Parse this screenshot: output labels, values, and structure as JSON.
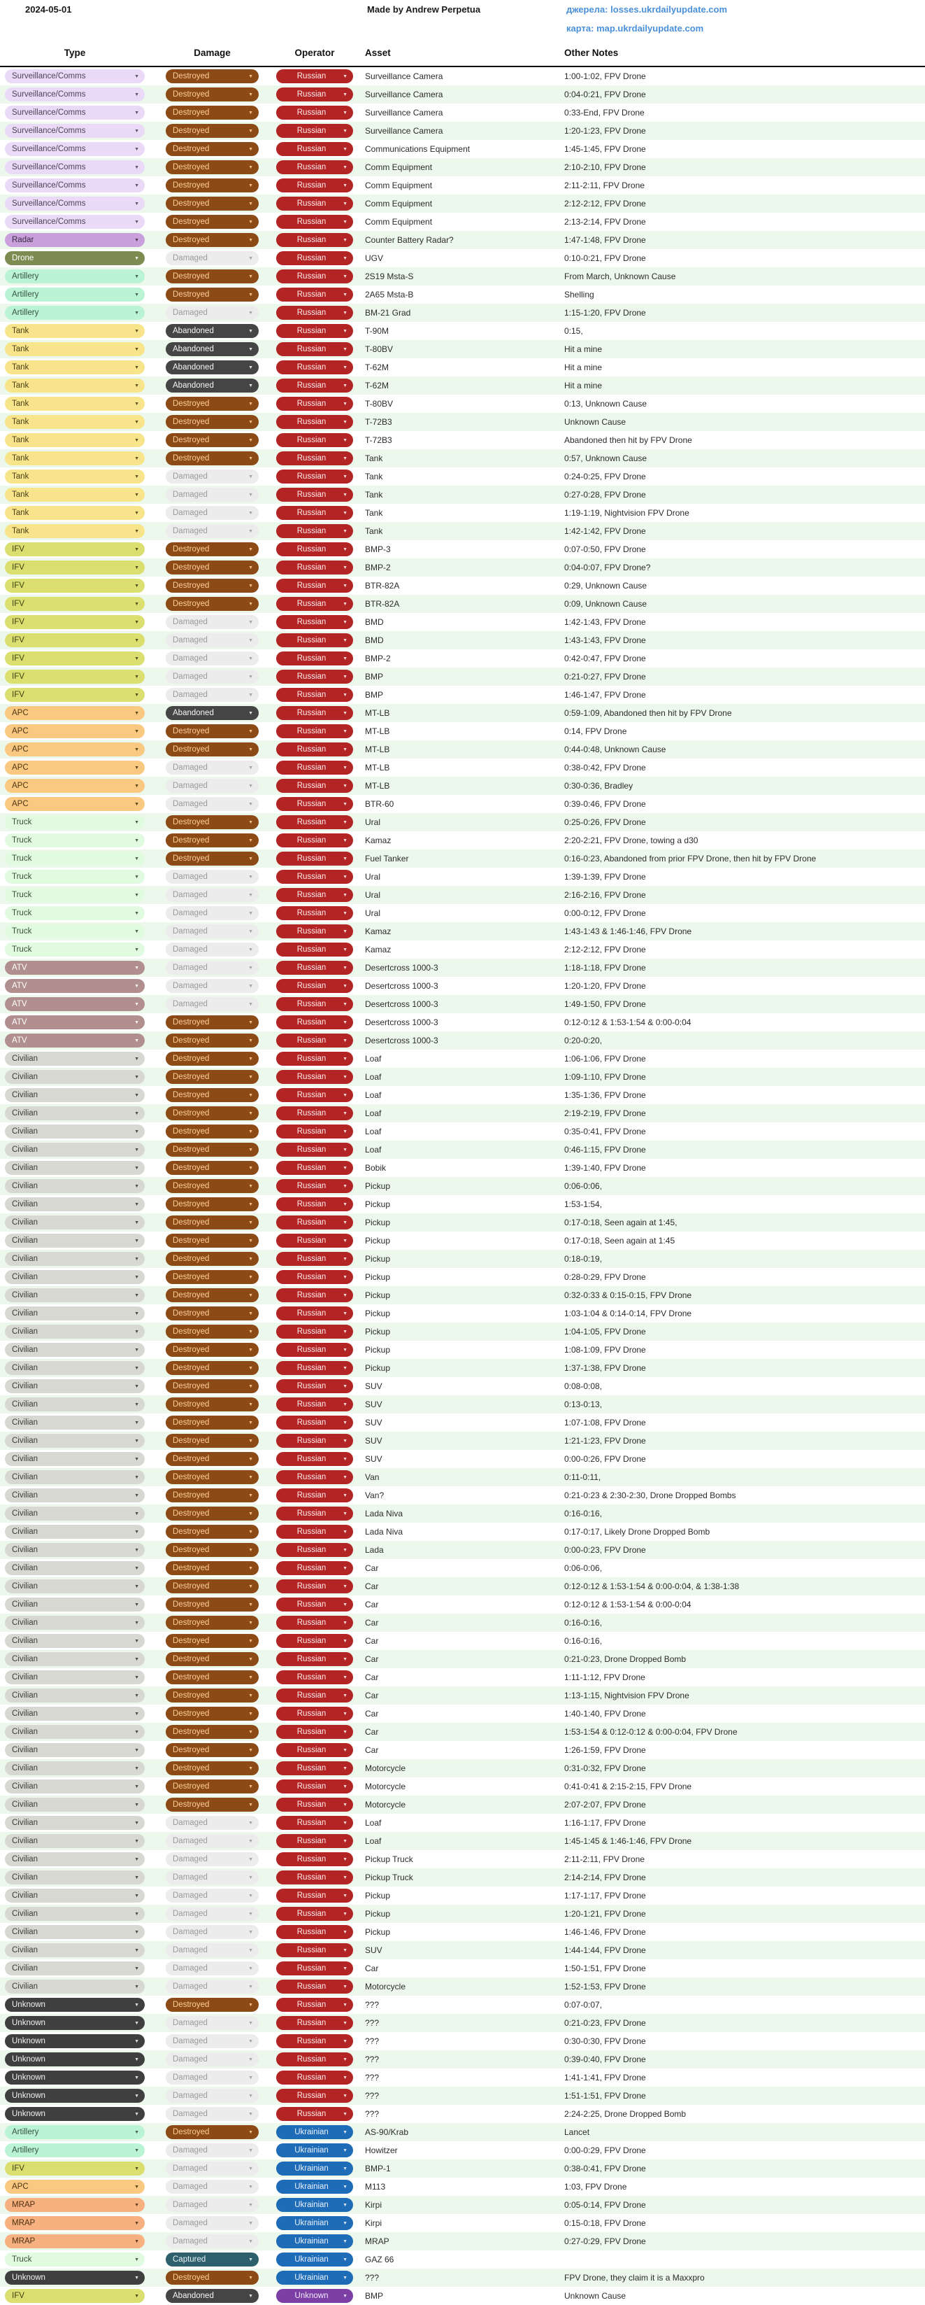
{
  "header": {
    "date": "2024-05-01",
    "credit": "Made by Andrew Perpetua",
    "sources_label": "джерела:",
    "sources_link": "losses.ukrdailyupdate.com",
    "map_label": "карта:",
    "map_link": "map.ukrdailyupdate.com"
  },
  "columns": {
    "type": "Type",
    "damage": "Damage",
    "operator": "Operator",
    "asset": "Asset",
    "notes": "Other Notes"
  },
  "styles": {
    "stripe_even": "#ffffff",
    "stripe_odd": "#edf8ed",
    "link_color": "#4a90d9",
    "type_colors": {
      "Surveillance/Comms": {
        "bg": "#ead9f7",
        "fg": "#4d4455"
      },
      "Radar": {
        "bg": "#c9a0dc",
        "fg": "#3a2a45"
      },
      "Drone": {
        "bg": "#7d8b51",
        "fg": "#ffffff"
      },
      "Artillery": {
        "bg": "#baf4d4",
        "fg": "#37523f"
      },
      "Tank": {
        "bg": "#f7e48b",
        "fg": "#4d4117"
      },
      "IFV": {
        "bg": "#dbdf70",
        "fg": "#3e4014"
      },
      "APC": {
        "bg": "#f9c981",
        "fg": "#4d3512"
      },
      "Truck": {
        "bg": "#e0fbe0",
        "fg": "#375237"
      },
      "ATV": {
        "bg": "#b28f8f",
        "fg": "#ffffff"
      },
      "Civilian": {
        "bg": "#d8d8d2",
        "fg": "#3c3c36"
      },
      "Unknown": {
        "bg": "#3f3f3f",
        "fg": "#f2f2f2"
      },
      "MRAP": {
        "bg": "#f7b07f",
        "fg": "#4d2f12"
      }
    },
    "damage_colors": {
      "Destroyed": {
        "bg": "#8b4a16",
        "fg": "#ffcf9e"
      },
      "Damaged": {
        "bg": "#ececec",
        "fg": "#9a9a9a"
      },
      "Abandoned": {
        "bg": "#454545",
        "fg": "#f5f5f5"
      },
      "Captured": {
        "bg": "#2d5f6d",
        "fg": "#eaf4f8"
      }
    },
    "operator_colors": {
      "Russian": {
        "bg": "#b32424",
        "fg": "#ffecec"
      },
      "Ukrainian": {
        "bg": "#1e6cb8",
        "fg": "#eaf2fc"
      },
      "Unknown": {
        "bg": "#7b3fa6",
        "fg": "#f3eafc"
      }
    }
  },
  "chart_data": {
    "type": "table",
    "columns": [
      "Type",
      "Damage",
      "Operator",
      "Asset",
      "Other Notes"
    ],
    "rows": [
      [
        "Surveillance/Comms",
        "Destroyed",
        "Russian",
        "Surveillance Camera",
        "1:00-1:02, FPV Drone"
      ],
      [
        "Surveillance/Comms",
        "Destroyed",
        "Russian",
        "Surveillance Camera",
        "0:04-0:21, FPV Drone"
      ],
      [
        "Surveillance/Comms",
        "Destroyed",
        "Russian",
        "Surveillance Camera",
        "0:33-End, FPV Drone"
      ],
      [
        "Surveillance/Comms",
        "Destroyed",
        "Russian",
        "Surveillance Camera",
        "1:20-1:23, FPV Drone"
      ],
      [
        "Surveillance/Comms",
        "Destroyed",
        "Russian",
        "Communications Equipment",
        "1:45-1:45, FPV Drone"
      ],
      [
        "Surveillance/Comms",
        "Destroyed",
        "Russian",
        "Comm Equipment",
        "2:10-2:10, FPV Drone"
      ],
      [
        "Surveillance/Comms",
        "Destroyed",
        "Russian",
        "Comm Equipment",
        "2:11-2:11, FPV Drone"
      ],
      [
        "Surveillance/Comms",
        "Destroyed",
        "Russian",
        "Comm Equipment",
        "2:12-2:12, FPV Drone"
      ],
      [
        "Surveillance/Comms",
        "Destroyed",
        "Russian",
        "Comm Equipment",
        "2:13-2:14, FPV Drone"
      ],
      [
        "Radar",
        "Destroyed",
        "Russian",
        "Counter Battery Radar?",
        "1:47-1:48, FPV Drone"
      ],
      [
        "Drone",
        "Damaged",
        "Russian",
        "UGV",
        "0:10-0:21, FPV Drone"
      ],
      [
        "Artillery",
        "Destroyed",
        "Russian",
        "2S19 Msta-S",
        "From March, Unknown Cause"
      ],
      [
        "Artillery",
        "Destroyed",
        "Russian",
        "2A65 Msta-B",
        "Shelling"
      ],
      [
        "Artillery",
        "Damaged",
        "Russian",
        "BM-21 Grad",
        "1:15-1:20, FPV Drone"
      ],
      [
        "Tank",
        "Abandoned",
        "Russian",
        "T-90M",
        "0:15,"
      ],
      [
        "Tank",
        "Abandoned",
        "Russian",
        "T-80BV",
        "Hit a mine"
      ],
      [
        "Tank",
        "Abandoned",
        "Russian",
        "T-62M",
        "Hit a mine"
      ],
      [
        "Tank",
        "Abandoned",
        "Russian",
        "T-62M",
        "Hit a mine"
      ],
      [
        "Tank",
        "Destroyed",
        "Russian",
        "T-80BV",
        "0:13, Unknown Cause"
      ],
      [
        "Tank",
        "Destroyed",
        "Russian",
        "T-72B3",
        "Unknown Cause"
      ],
      [
        "Tank",
        "Destroyed",
        "Russian",
        "T-72B3",
        "Abandoned then hit by FPV Drone"
      ],
      [
        "Tank",
        "Destroyed",
        "Russian",
        "Tank",
        "0:57, Unknown Cause"
      ],
      [
        "Tank",
        "Damaged",
        "Russian",
        "Tank",
        "0:24-0:25, FPV Drone"
      ],
      [
        "Tank",
        "Damaged",
        "Russian",
        "Tank",
        "0:27-0:28, FPV Drone"
      ],
      [
        "Tank",
        "Damaged",
        "Russian",
        "Tank",
        "1:19-1:19, Nightvision FPV Drone"
      ],
      [
        "Tank",
        "Damaged",
        "Russian",
        "Tank",
        "1:42-1:42, FPV Drone"
      ],
      [
        "IFV",
        "Destroyed",
        "Russian",
        "BMP-3",
        "0:07-0:50, FPV Drone"
      ],
      [
        "IFV",
        "Destroyed",
        "Russian",
        "BMP-2",
        "0:04-0:07, FPV Drone?"
      ],
      [
        "IFV",
        "Destroyed",
        "Russian",
        "BTR-82A",
        "0:29, Unknown Cause"
      ],
      [
        "IFV",
        "Destroyed",
        "Russian",
        "BTR-82A",
        "0:09, Unknown Cause"
      ],
      [
        "IFV",
        "Damaged",
        "Russian",
        "BMD",
        "1:42-1:43, FPV Drone"
      ],
      [
        "IFV",
        "Damaged",
        "Russian",
        "BMD",
        "1:43-1:43, FPV Drone"
      ],
      [
        "IFV",
        "Damaged",
        "Russian",
        "BMP-2",
        "0:42-0:47, FPV Drone"
      ],
      [
        "IFV",
        "Damaged",
        "Russian",
        "BMP",
        "0:21-0:27, FPV Drone"
      ],
      [
        "IFV",
        "Damaged",
        "Russian",
        "BMP",
        "1:46-1:47, FPV Drone"
      ],
      [
        "APC",
        "Abandoned",
        "Russian",
        "MT-LB",
        "0:59-1:09, Abandoned then hit by FPV Drone"
      ],
      [
        "APC",
        "Destroyed",
        "Russian",
        "MT-LB",
        "0:14, FPV Drone"
      ],
      [
        "APC",
        "Destroyed",
        "Russian",
        "MT-LB",
        "0:44-0:48, Unknown Cause"
      ],
      [
        "APC",
        "Damaged",
        "Russian",
        "MT-LB",
        "0:38-0:42, FPV Drone"
      ],
      [
        "APC",
        "Damaged",
        "Russian",
        "MT-LB",
        "0:30-0:36, Bradley"
      ],
      [
        "APC",
        "Damaged",
        "Russian",
        "BTR-60",
        "0:39-0:46, FPV Drone"
      ],
      [
        "Truck",
        "Destroyed",
        "Russian",
        "Ural",
        "0:25-0:26, FPV Drone"
      ],
      [
        "Truck",
        "Destroyed",
        "Russian",
        "Kamaz",
        "2:20-2:21, FPV Drone, towing a d30"
      ],
      [
        "Truck",
        "Destroyed",
        "Russian",
        "Fuel Tanker",
        "0:16-0:23, Abandoned from prior FPV Drone, then hit by FPV Drone"
      ],
      [
        "Truck",
        "Damaged",
        "Russian",
        "Ural",
        "1:39-1:39, FPV Drone"
      ],
      [
        "Truck",
        "Damaged",
        "Russian",
        "Ural",
        "2:16-2:16, FPV Drone"
      ],
      [
        "Truck",
        "Damaged",
        "Russian",
        "Ural",
        "0:00-0:12, FPV Drone"
      ],
      [
        "Truck",
        "Damaged",
        "Russian",
        "Kamaz",
        "1:43-1:43 & 1:46-1:46, FPV Drone"
      ],
      [
        "Truck",
        "Damaged",
        "Russian",
        "Kamaz",
        "2:12-2:12, FPV Drone"
      ],
      [
        "ATV",
        "Damaged",
        "Russian",
        "Desertcross 1000-3",
        "1:18-1:18, FPV Drone"
      ],
      [
        "ATV",
        "Damaged",
        "Russian",
        "Desertcross 1000-3",
        "1:20-1:20, FPV Drone"
      ],
      [
        "ATV",
        "Damaged",
        "Russian",
        "Desertcross 1000-3",
        "1:49-1:50, FPV Drone"
      ],
      [
        "ATV",
        "Destroyed",
        "Russian",
        "Desertcross 1000-3",
        "0:12-0:12 & 1:53-1:54 & 0:00-0:04"
      ],
      [
        "ATV",
        "Destroyed",
        "Russian",
        "Desertcross 1000-3",
        "0:20-0:20,"
      ],
      [
        "Civilian",
        "Destroyed",
        "Russian",
        "Loaf",
        "1:06-1:06, FPV Drone"
      ],
      [
        "Civilian",
        "Destroyed",
        "Russian",
        "Loaf",
        "1:09-1:10, FPV Drone"
      ],
      [
        "Civilian",
        "Destroyed",
        "Russian",
        "Loaf",
        "1:35-1:36, FPV Drone"
      ],
      [
        "Civilian",
        "Destroyed",
        "Russian",
        "Loaf",
        "2:19-2:19, FPV Drone"
      ],
      [
        "Civilian",
        "Destroyed",
        "Russian",
        "Loaf",
        "0:35-0:41, FPV Drone"
      ],
      [
        "Civilian",
        "Destroyed",
        "Russian",
        "Loaf",
        "0:46-1:15, FPV Drone"
      ],
      [
        "Civilian",
        "Destroyed",
        "Russian",
        "Bobik",
        "1:39-1:40, FPV Drone"
      ],
      [
        "Civilian",
        "Destroyed",
        "Russian",
        "Pickup",
        "0:06-0:06,"
      ],
      [
        "Civilian",
        "Destroyed",
        "Russian",
        "Pickup",
        "1:53-1:54,"
      ],
      [
        "Civilian",
        "Destroyed",
        "Russian",
        "Pickup",
        "0:17-0:18, Seen again at 1:45,"
      ],
      [
        "Civilian",
        "Destroyed",
        "Russian",
        "Pickup",
        "0:17-0:18, Seen again at 1:45"
      ],
      [
        "Civilian",
        "Destroyed",
        "Russian",
        "Pickup",
        "0:18-0:19,"
      ],
      [
        "Civilian",
        "Destroyed",
        "Russian",
        "Pickup",
        "0:28-0:29, FPV Drone"
      ],
      [
        "Civilian",
        "Destroyed",
        "Russian",
        "Pickup",
        "0:32-0:33 & 0:15-0:15, FPV Drone"
      ],
      [
        "Civilian",
        "Destroyed",
        "Russian",
        "Pickup",
        "1:03-1:04 & 0:14-0:14, FPV Drone"
      ],
      [
        "Civilian",
        "Destroyed",
        "Russian",
        "Pickup",
        "1:04-1:05, FPV Drone"
      ],
      [
        "Civilian",
        "Destroyed",
        "Russian",
        "Pickup",
        "1:08-1:09, FPV Drone"
      ],
      [
        "Civilian",
        "Destroyed",
        "Russian",
        "Pickup",
        "1:37-1:38, FPV Drone"
      ],
      [
        "Civilian",
        "Destroyed",
        "Russian",
        "SUV",
        "0:08-0:08,"
      ],
      [
        "Civilian",
        "Destroyed",
        "Russian",
        "SUV",
        "0:13-0:13,"
      ],
      [
        "Civilian",
        "Destroyed",
        "Russian",
        "SUV",
        "1:07-1:08, FPV Drone"
      ],
      [
        "Civilian",
        "Destroyed",
        "Russian",
        "SUV",
        "1:21-1:23, FPV Drone"
      ],
      [
        "Civilian",
        "Destroyed",
        "Russian",
        "SUV",
        "0:00-0:26, FPV Drone"
      ],
      [
        "Civilian",
        "Destroyed",
        "Russian",
        "Van",
        "0:11-0:11,"
      ],
      [
        "Civilian",
        "Destroyed",
        "Russian",
        "Van?",
        "0:21-0:23 & 2:30-2:30, Drone Dropped Bombs"
      ],
      [
        "Civilian",
        "Destroyed",
        "Russian",
        "Lada Niva",
        "0:16-0:16,"
      ],
      [
        "Civilian",
        "Destroyed",
        "Russian",
        "Lada Niva",
        "0:17-0:17, Likely Drone Dropped Bomb"
      ],
      [
        "Civilian",
        "Destroyed",
        "Russian",
        "Lada",
        "0:00-0:23, FPV Drone"
      ],
      [
        "Civilian",
        "Destroyed",
        "Russian",
        "Car",
        "0:06-0:06,"
      ],
      [
        "Civilian",
        "Destroyed",
        "Russian",
        "Car",
        "0:12-0:12 & 1:53-1:54 & 0:00-0:04, & 1:38-1:38"
      ],
      [
        "Civilian",
        "Destroyed",
        "Russian",
        "Car",
        "0:12-0:12 & 1:53-1:54 & 0:00-0:04"
      ],
      [
        "Civilian",
        "Destroyed",
        "Russian",
        "Car",
        "0:16-0:16,"
      ],
      [
        "Civilian",
        "Destroyed",
        "Russian",
        "Car",
        "0:16-0:16,"
      ],
      [
        "Civilian",
        "Destroyed",
        "Russian",
        "Car",
        "0:21-0:23, Drone Dropped Bomb"
      ],
      [
        "Civilian",
        "Destroyed",
        "Russian",
        "Car",
        "1:11-1:12, FPV Drone"
      ],
      [
        "Civilian",
        "Destroyed",
        "Russian",
        "Car",
        "1:13-1:15, Nightvision FPV Drone"
      ],
      [
        "Civilian",
        "Destroyed",
        "Russian",
        "Car",
        "1:40-1:40, FPV Drone"
      ],
      [
        "Civilian",
        "Destroyed",
        "Russian",
        "Car",
        "1:53-1:54 & 0:12-0:12 & 0:00-0:04, FPV Drone"
      ],
      [
        "Civilian",
        "Destroyed",
        "Russian",
        "Car",
        "1:26-1:59, FPV Drone"
      ],
      [
        "Civilian",
        "Destroyed",
        "Russian",
        "Motorcycle",
        "0:31-0:32, FPV Drone"
      ],
      [
        "Civilian",
        "Destroyed",
        "Russian",
        "Motorcycle",
        "0:41-0:41 & 2:15-2:15, FPV Drone"
      ],
      [
        "Civilian",
        "Destroyed",
        "Russian",
        "Motorcycle",
        "2:07-2:07, FPV Drone"
      ],
      [
        "Civilian",
        "Damaged",
        "Russian",
        "Loaf",
        "1:16-1:17, FPV Drone"
      ],
      [
        "Civilian",
        "Damaged",
        "Russian",
        "Loaf",
        "1:45-1:45 & 1:46-1:46, FPV Drone"
      ],
      [
        "Civilian",
        "Damaged",
        "Russian",
        "Pickup Truck",
        "2:11-2:11, FPV Drone"
      ],
      [
        "Civilian",
        "Damaged",
        "Russian",
        "Pickup Truck",
        "2:14-2:14, FPV Drone"
      ],
      [
        "Civilian",
        "Damaged",
        "Russian",
        "Pickup",
        "1:17-1:17, FPV Drone"
      ],
      [
        "Civilian",
        "Damaged",
        "Russian",
        "Pickup",
        "1:20-1:21, FPV Drone"
      ],
      [
        "Civilian",
        "Damaged",
        "Russian",
        "Pickup",
        "1:46-1:46, FPV Drone"
      ],
      [
        "Civilian",
        "Damaged",
        "Russian",
        "SUV",
        "1:44-1:44, FPV Drone"
      ],
      [
        "Civilian",
        "Damaged",
        "Russian",
        "Car",
        "1:50-1:51, FPV Drone"
      ],
      [
        "Civilian",
        "Damaged",
        "Russian",
        "Motorcycle",
        "1:52-1:53, FPV Drone"
      ],
      [
        "Unknown",
        "Destroyed",
        "Russian",
        "???",
        "0:07-0:07,"
      ],
      [
        "Unknown",
        "Damaged",
        "Russian",
        "???",
        "0:21-0:23, FPV Drone"
      ],
      [
        "Unknown",
        "Damaged",
        "Russian",
        "???",
        "0:30-0:30, FPV Drone"
      ],
      [
        "Unknown",
        "Damaged",
        "Russian",
        "???",
        "0:39-0:40, FPV Drone"
      ],
      [
        "Unknown",
        "Damaged",
        "Russian",
        "???",
        "1:41-1:41, FPV Drone"
      ],
      [
        "Unknown",
        "Damaged",
        "Russian",
        "???",
        "1:51-1:51, FPV Drone"
      ],
      [
        "Unknown",
        "Damaged",
        "Russian",
        "???",
        "2:24-2:25, Drone Dropped Bomb"
      ],
      [
        "Artillery",
        "Destroyed",
        "Ukrainian",
        "AS-90/Krab",
        "Lancet"
      ],
      [
        "Artillery",
        "Damaged",
        "Ukrainian",
        "Howitzer",
        "0:00-0:29, FPV Drone"
      ],
      [
        "IFV",
        "Damaged",
        "Ukrainian",
        "BMP-1",
        "0:38-0:41, FPV Drone"
      ],
      [
        "APC",
        "Damaged",
        "Ukrainian",
        "M113",
        "1:03, FPV Drone"
      ],
      [
        "MRAP",
        "Damaged",
        "Ukrainian",
        "Kirpi",
        "0:05-0:14, FPV Drone"
      ],
      [
        "MRAP",
        "Damaged",
        "Ukrainian",
        "Kirpi",
        "0:15-0:18, FPV Drone"
      ],
      [
        "MRAP",
        "Damaged",
        "Ukrainian",
        "MRAP",
        "0:27-0:29, FPV Drone"
      ],
      [
        "Truck",
        "Captured",
        "Ukrainian",
        "GAZ 66",
        ""
      ],
      [
        "Unknown",
        "Destroyed",
        "Ukrainian",
        "???",
        "FPV Drone, they claim it is a Maxxpro"
      ],
      [
        "IFV",
        "Abandoned",
        "Unknown",
        "BMP",
        "Unknown Cause"
      ]
    ]
  }
}
